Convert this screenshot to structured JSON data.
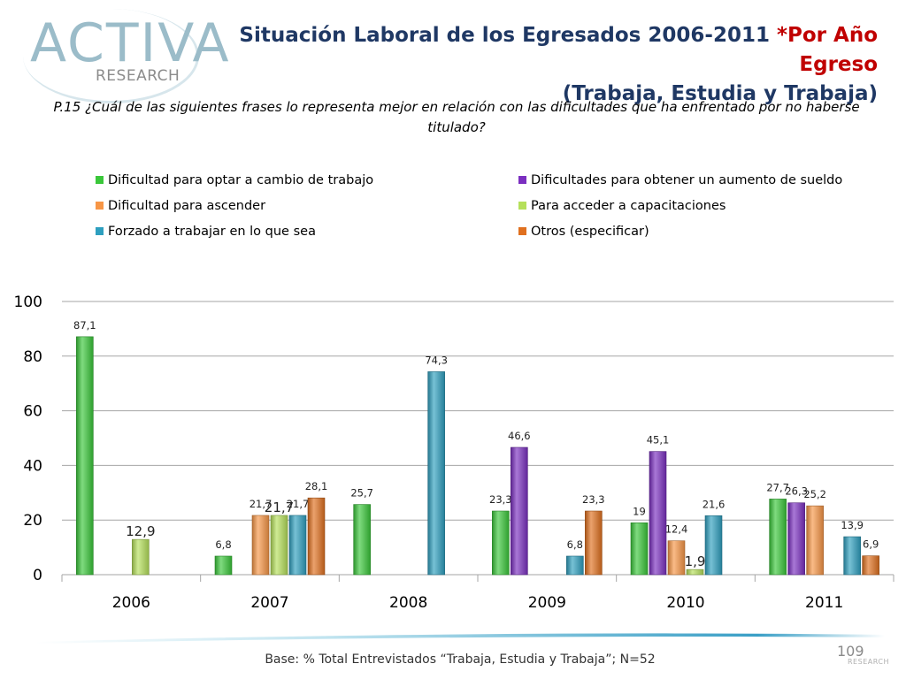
{
  "header": {
    "logo_text": "ACTIVA",
    "logo_subtext": "RESEARCH",
    "title_main": "Situación Laboral de los Egresados 2006-2011",
    "title_accent": "*Por Año Egreso",
    "title_line2": "(Trabaja, Estudia y Trabaja)"
  },
  "question": "P.15 ¿Cuál de las siguientes frases lo representa mejor en relación con las dificultades que ha enfrentado por no haberse titulado?",
  "footer": {
    "base_text": "Base: % Total Entrevistados “Trabaja, Estudia y Trabaja”; N=52",
    "page_number": "109"
  },
  "chart_data": {
    "type": "bar",
    "title": "",
    "xlabel": "",
    "ylabel": "",
    "ylim": [
      0,
      100
    ],
    "yticks": [
      "0",
      "20",
      "40",
      "60",
      "80",
      "100"
    ],
    "categories": [
      "2006",
      "2007",
      "2008",
      "2009",
      "2010",
      "2011"
    ],
    "legend_position": "top",
    "series": [
      {
        "name": "Dificultad para optar a cambio de trabajo",
        "color": "#3ac73a",
        "values": [
          87.1,
          6.8,
          25.7,
          23.3,
          19,
          27.7
        ],
        "labels": [
          "87,1",
          "6,8",
          "25,7",
          "23,3",
          "19",
          "27,7"
        ]
      },
      {
        "name": "Dificultades para obtener un aumento de sueldo",
        "color": "#7b2fc0",
        "values": [
          0,
          0,
          0,
          46.6,
          45.1,
          26.3
        ],
        "labels": [
          "",
          "",
          "",
          "46,6",
          "45,1",
          "26,3"
        ]
      },
      {
        "name": "Dificultad para ascender",
        "color": "#f79646",
        "values": [
          0,
          21.7,
          0,
          0,
          12.4,
          25.2
        ],
        "labels": [
          "",
          "21,7",
          "",
          "",
          "12,4",
          "25,2"
        ]
      },
      {
        "name": "Para acceder a capacitaciones",
        "color": "#b5e05a",
        "values": [
          12.9,
          21.7,
          0,
          0,
          1.9,
          0
        ],
        "labels": [
          "12,9",
          "21,7",
          "",
          "",
          "1,9",
          ""
        ]
      },
      {
        "name": "Forzado a trabajar en lo que sea",
        "color": "#2e9fbf",
        "values": [
          0,
          21.7,
          74.3,
          6.8,
          21.6,
          13.9
        ],
        "labels": [
          "",
          "21,7",
          "74,3",
          "6,8",
          "21,6",
          "13,9"
        ]
      },
      {
        "name": "Otros (especificar)",
        "color": "#e0701f",
        "values": [
          0,
          28.1,
          0,
          23.3,
          0,
          6.9
        ],
        "labels": [
          "",
          "28,1",
          "",
          "23,3",
          "",
          "6,9"
        ]
      }
    ]
  }
}
